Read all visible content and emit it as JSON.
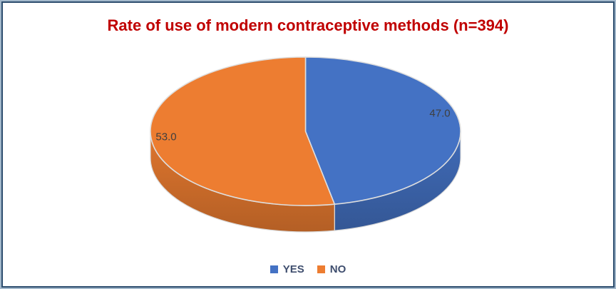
{
  "title": {
    "text": "Rate of use of modern contraceptive methods (n=394)",
    "color": "#C00000"
  },
  "chart_data": {
    "type": "pie",
    "style": "3d",
    "title": "Rate of use of modern contraceptive methods (n=394)",
    "n": 394,
    "categories": [
      "YES",
      "NO"
    ],
    "values": [
      47.0,
      53.0
    ],
    "data_labels": [
      "47.0",
      "53.0"
    ],
    "colors": [
      "#4472C4",
      "#ED7D31"
    ],
    "start_angle_deg": 0,
    "direction": "clockwise",
    "legend_position": "bottom"
  },
  "legend": {
    "text_color": "#3f4e6e",
    "items": [
      {
        "label": "YES",
        "color": "#4472C4"
      },
      {
        "label": "NO",
        "color": "#ED7D31"
      }
    ]
  }
}
